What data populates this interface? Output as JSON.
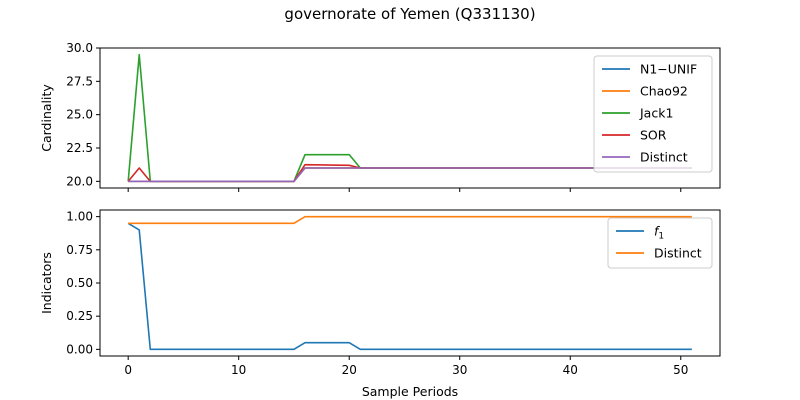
{
  "chart_data": {
    "title": "governorate of Yemen (Q331130)",
    "xlabel": "Sample Periods",
    "x_ticks": [
      0,
      10,
      20,
      30,
      40,
      50
    ],
    "xlim": [
      -2.55,
      53.55
    ],
    "panels": [
      {
        "type": "line",
        "ylabel": "Cardinality",
        "ylim": [
          19.5,
          30.0
        ],
        "y_ticks": [
          20.0,
          22.5,
          25.0,
          27.5,
          30.0
        ],
        "y_tick_labels": [
          "20.0",
          "22.5",
          "25.0",
          "27.5",
          "30.0"
        ],
        "legend_position": "top-right",
        "series": [
          {
            "name": "N1−UNIF",
            "color": "#1f77b4",
            "points": [
              [
                0,
                20
              ],
              [
                1,
                20
              ],
              [
                2,
                20
              ],
              [
                15,
                20
              ],
              [
                16,
                21
              ],
              [
                51,
                21
              ]
            ]
          },
          {
            "name": "Chao92",
            "color": "#ff7f0e",
            "points": [
              [
                0,
                20
              ],
              [
                1,
                20
              ],
              [
                2,
                20
              ],
              [
                15,
                20
              ],
              [
                16,
                21
              ],
              [
                51,
                21
              ]
            ]
          },
          {
            "name": "Jack1",
            "color": "#2ca02c",
            "points": [
              [
                0,
                20
              ],
              [
                1,
                29.5
              ],
              [
                2,
                20
              ],
              [
                15,
                20
              ],
              [
                16,
                22
              ],
              [
                20,
                22
              ],
              [
                21,
                21
              ],
              [
                51,
                21
              ]
            ]
          },
          {
            "name": "SOR",
            "color": "#d62728",
            "points": [
              [
                0,
                20
              ],
              [
                1,
                21
              ],
              [
                2,
                20
              ],
              [
                15,
                20
              ],
              [
                16,
                21.25
              ],
              [
                20,
                21.2
              ],
              [
                21,
                21
              ],
              [
                51,
                21
              ]
            ]
          },
          {
            "name": "Distinct",
            "color": "#9467bd",
            "points": [
              [
                0,
                20
              ],
              [
                1,
                20
              ],
              [
                2,
                20
              ],
              [
                15,
                20
              ],
              [
                16,
                21
              ],
              [
                51,
                21
              ]
            ]
          }
        ]
      },
      {
        "type": "line",
        "ylabel": "Indicators",
        "ylim": [
          -0.05,
          1.05
        ],
        "y_ticks": [
          0.0,
          0.25,
          0.5,
          0.75,
          1.0
        ],
        "y_tick_labels": [
          "0.00",
          "0.25",
          "0.50",
          "0.75",
          "1.00"
        ],
        "legend_position": "top-right",
        "series": [
          {
            "name": "f",
            "name_subscript": "1",
            "color": "#1f77b4",
            "points": [
              [
                0,
                0.95
              ],
              [
                1,
                0.9
              ],
              [
                2,
                0
              ],
              [
                15,
                0
              ],
              [
                16,
                0.05
              ],
              [
                20,
                0.05
              ],
              [
                21,
                0
              ],
              [
                51,
                0
              ]
            ]
          },
          {
            "name": "Distinct",
            "color": "#ff7f0e",
            "points": [
              [
                0,
                0.95
              ],
              [
                1,
                0.95
              ],
              [
                15,
                0.95
              ],
              [
                16,
                1.0
              ],
              [
                51,
                1.0
              ]
            ]
          }
        ]
      }
    ]
  }
}
